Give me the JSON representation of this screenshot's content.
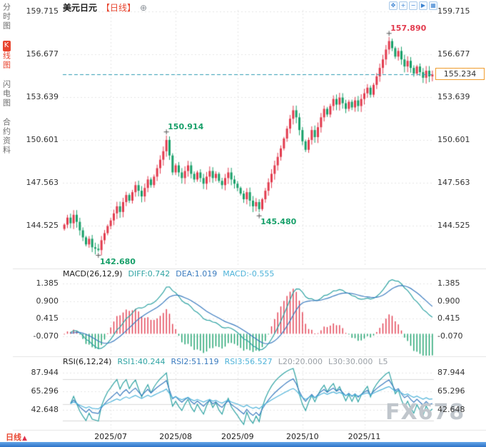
{
  "app": {
    "title": "美元日元",
    "period": "【日线】",
    "add_icon": "⊕"
  },
  "sidebar": {
    "items": [
      {
        "label": "分时图",
        "active": false
      },
      {
        "label": "K线图",
        "active": true
      },
      {
        "label": "闪电图",
        "active": false
      },
      {
        "label": "合约资料",
        "active": false
      }
    ]
  },
  "toolbar": {
    "icons": [
      {
        "name": "pan-icon",
        "glyph": "✥"
      },
      {
        "name": "zoom-in-icon",
        "glyph": "+"
      },
      {
        "name": "zoom-out-icon",
        "glyph": "−"
      },
      {
        "name": "play-icon",
        "glyph": "▶"
      },
      {
        "name": "grid-icon",
        "glyph": "▦"
      }
    ]
  },
  "colors": {
    "up": "#E23B4E",
    "down": "#18A06A",
    "grid": "#e6e6e6",
    "price_line": "#2E9BB0",
    "accent": "#E8452F",
    "toolbar_icon": "#3B82D0",
    "watermark": "#C0C6CC",
    "badge_border": "#F09D2E"
  },
  "watermark": "FX678",
  "footer": {
    "period_label": "日线",
    "arrow": "▲"
  },
  "chart_data": {
    "type": "candlestick",
    "symbol": "美元日元",
    "timeframe": "日线",
    "x_labels": [
      {
        "label": "2025/07",
        "index": 15
      },
      {
        "label": "2025/08",
        "index": 36
      },
      {
        "label": "2025/09",
        "index": 56
      },
      {
        "label": "2025/10",
        "index": 77
      },
      {
        "label": "2025/11",
        "index": 97
      }
    ],
    "main": {
      "ticks": [
        "159.715",
        "156.677",
        "153.639",
        "150.601",
        "147.563",
        "144.525"
      ],
      "range": [
        141.7,
        159.8
      ],
      "open_first": 144.3,
      "closes": [
        144.6,
        145.1,
        144.7,
        145.3,
        144.8,
        144.2,
        143.7,
        143.2,
        143.6,
        143.0,
        142.9,
        142.8,
        143.5,
        144.0,
        144.5,
        144.9,
        145.4,
        145.9,
        145.5,
        146.2,
        146.7,
        146.3,
        146.9,
        147.4,
        147.0,
        146.6,
        147.2,
        147.8,
        147.4,
        148.0,
        148.6,
        149.2,
        149.8,
        150.6,
        149.5,
        148.3,
        148.8,
        148.3,
        147.9,
        148.4,
        148.8,
        148.2,
        147.8,
        148.3,
        147.9,
        147.5,
        148.0,
        148.4,
        147.9,
        148.2,
        147.7,
        147.4,
        147.9,
        148.3,
        147.8,
        147.5,
        147.2,
        146.8,
        146.4,
        146.9,
        146.3,
        145.9,
        146.2,
        145.7,
        146.4,
        147.0,
        147.6,
        148.2,
        148.8,
        149.4,
        150.0,
        150.7,
        151.4,
        152.1,
        152.7,
        152.2,
        151.3,
        150.5,
        149.9,
        150.6,
        151.3,
        150.8,
        151.5,
        152.2,
        152.8,
        152.4,
        153.0,
        153.5,
        153.1,
        153.6,
        153.2,
        152.8,
        153.3,
        152.9,
        153.4,
        153.0,
        153.5,
        153.9,
        154.3,
        153.8,
        154.5,
        155.1,
        155.7,
        156.3,
        157.0,
        157.6,
        157.1,
        156.5,
        156.9,
        156.3,
        155.8,
        156.2,
        155.7,
        155.3,
        155.8,
        155.4,
        155.0,
        155.5,
        155.1,
        155.234
      ],
      "current_price": 155.234,
      "price_badge": "155.234",
      "annotations": [
        {
          "index": 105,
          "side": "high",
          "value": 157.89,
          "label": "157.890",
          "color": "#E23B4E"
        },
        {
          "index": 33,
          "side": "high",
          "value": 150.914,
          "label": "150.914",
          "color": "#18A06A"
        },
        {
          "index": 63,
          "side": "low",
          "value": 145.48,
          "label": "145.480",
          "color": "#18A06A"
        },
        {
          "index": 11,
          "side": "low",
          "value": 142.68,
          "label": "142.680",
          "color": "#18A06A"
        }
      ]
    },
    "macd": {
      "header": "MACD(26,12,9)",
      "params": [
        26,
        12,
        9
      ],
      "values": [
        {
          "label": "DIFF:0.742",
          "color": "#2FA3A3"
        },
        {
          "label": "DEA:1.019",
          "color": "#3A7BBF"
        },
        {
          "label": "MACD:-0.555",
          "color": "#4FB3D9"
        }
      ],
      "ticks": [
        "1.385",
        "0.900",
        "0.415",
        "-0.070"
      ],
      "range": [
        -0.6,
        1.52
      ]
    },
    "rsi": {
      "header": "RSI(6,12,24)",
      "params": [
        6,
        12,
        24
      ],
      "values": [
        {
          "label": "RSI1:40.244",
          "color": "#2FA3A3"
        },
        {
          "label": "RSI2:51.119",
          "color": "#3A7BBF"
        },
        {
          "label": "RSI3:56.527",
          "color": "#4FB3D9"
        },
        {
          "label": "L20:20.000",
          "color": "#9aa0a6"
        },
        {
          "label": "L30:30.000",
          "color": "#9aa0a6"
        },
        {
          "label": "L5",
          "color": "#9aa0a6"
        }
      ],
      "ticks": [
        "87.944",
        "65.296",
        "42.648"
      ],
      "range": [
        20,
        95
      ],
      "ref_lines": [
        80,
        50,
        30
      ]
    }
  }
}
